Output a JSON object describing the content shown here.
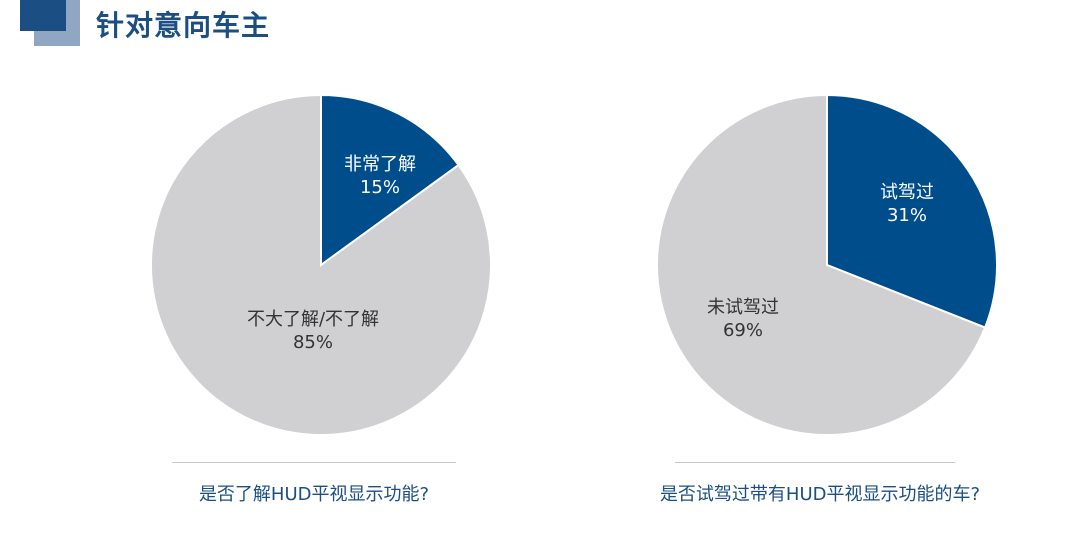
{
  "page": {
    "title": "针对意向车主"
  },
  "colors": {
    "accent": "#004d8c",
    "neutral": "#d0cfd1",
    "title": "#1b4f84"
  },
  "chart_data": [
    {
      "type": "pie",
      "title": "是否了解HUD平视显示功能?",
      "slices": [
        {
          "label": "非常了解",
          "value": 15,
          "value_label": "15%",
          "color": "#004d8c"
        },
        {
          "label": "不大了解/不了解",
          "value": 85,
          "value_label": "85%",
          "color": "#d0cfd1"
        }
      ]
    },
    {
      "type": "pie",
      "title": "是否试驾过带有HUD平视显示功能的车?",
      "slices": [
        {
          "label": "试驾过",
          "value": 31,
          "value_label": "31%",
          "color": "#004d8c"
        },
        {
          "label": "未试驾过",
          "value": 69,
          "value_label": "69%",
          "color": "#d0cfd1"
        }
      ]
    }
  ]
}
